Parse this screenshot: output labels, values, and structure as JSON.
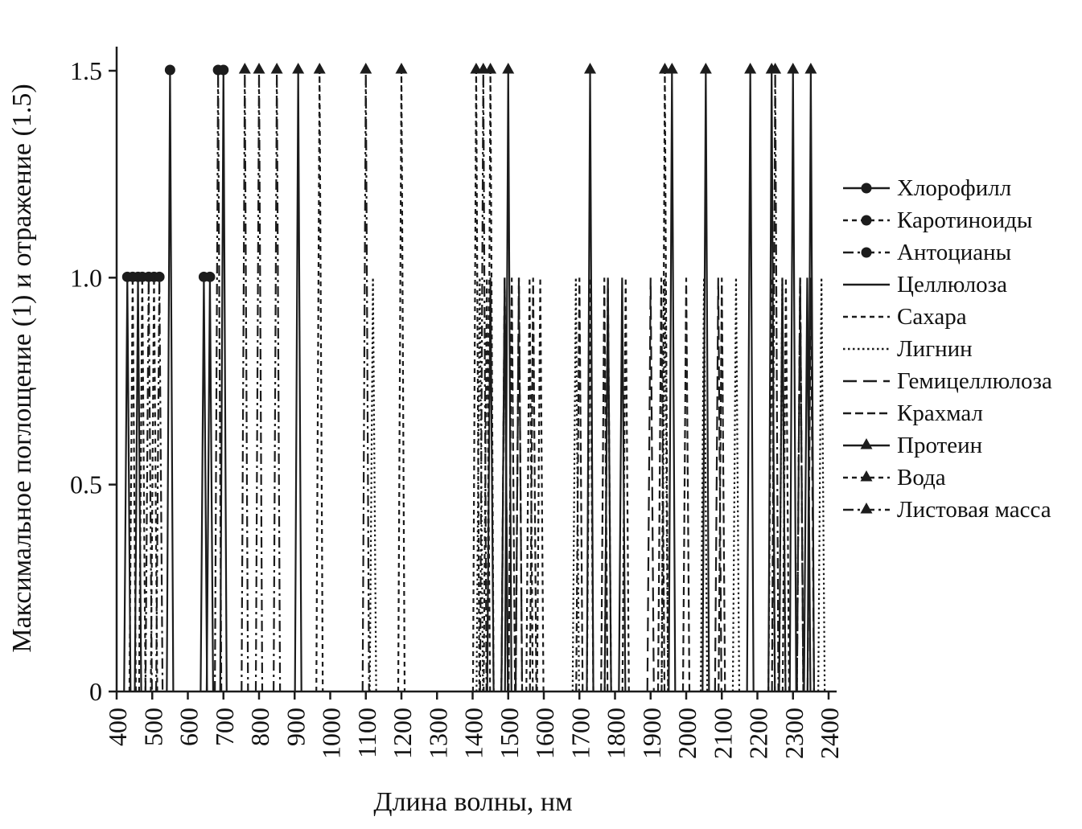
{
  "chart_data": {
    "type": "line",
    "subtype": "spectral-spike-stem",
    "title": "",
    "xlabel": "Длина волны, нм",
    "ylabel": "Максимальное поглощение (1) и отражение (1.5)",
    "xlim": [
      400,
      2400
    ],
    "ylim": [
      0,
      1.5
    ],
    "x_ticks": [
      400,
      500,
      600,
      700,
      800,
      900,
      1000,
      1100,
      1200,
      1300,
      1400,
      1500,
      1600,
      1700,
      1800,
      1900,
      2000,
      2100,
      2200,
      2300,
      2400
    ],
    "y_ticks": [
      0,
      0.5,
      1.0,
      1.5
    ],
    "y_tick_labels": [
      "0",
      "0.5",
      "1.0",
      "1.5"
    ],
    "absorption_level": 1.0,
    "reflection_level": 1.5,
    "grid": false,
    "legend_position": "right",
    "line_color": "#1c1c1c",
    "series": [
      {
        "name": "Хлорофилл",
        "line_style": "solid",
        "marker": "circle",
        "points": [
          [
            430,
            1.0
          ],
          [
            460,
            1.0
          ],
          [
            550,
            1.5
          ],
          [
            645,
            1.0
          ],
          [
            662,
            1.0
          ],
          [
            700,
            1.5
          ]
        ]
      },
      {
        "name": "Каротиноиды",
        "line_style": "shortdash",
        "marker": "circle",
        "points": [
          [
            445,
            1.0
          ],
          [
            472,
            1.0
          ],
          [
            505,
            1.0
          ]
        ]
      },
      {
        "name": "Антоцианы",
        "line_style": "dashdot",
        "marker": "circle",
        "points": [
          [
            490,
            1.0
          ],
          [
            520,
            1.0
          ],
          [
            685,
            1.5
          ]
        ]
      },
      {
        "name": "Целлюлоза",
        "line_style": "solid",
        "marker": "none",
        "points": [
          [
            1450,
            1.0
          ],
          [
            1490,
            1.0
          ],
          [
            1780,
            1.0
          ],
          [
            1820,
            1.0
          ],
          [
            2270,
            1.0
          ],
          [
            2340,
            1.0
          ]
        ]
      },
      {
        "name": "Сахара",
        "line_style": "shortdash",
        "marker": "none",
        "points": [
          [
            1440,
            1.0
          ],
          [
            1490,
            1.0
          ],
          [
            1560,
            1.0
          ],
          [
            1590,
            1.0
          ],
          [
            1730,
            1.0
          ],
          [
            1780,
            1.0
          ],
          [
            1830,
            1.0
          ],
          [
            2240,
            1.0
          ],
          [
            2280,
            1.0
          ],
          [
            2320,
            1.0
          ]
        ]
      },
      {
        "name": "Лигнин",
        "line_style": "dot",
        "marker": "none",
        "points": [
          [
            1120,
            1.0
          ],
          [
            1420,
            1.0
          ],
          [
            1690,
            1.0
          ],
          [
            1940,
            1.0
          ],
          [
            2050,
            1.0
          ],
          [
            2140,
            1.0
          ],
          [
            2270,
            1.0
          ],
          [
            2380,
            1.0
          ]
        ]
      },
      {
        "name": "Гемицеллюлоза",
        "line_style": "longdash",
        "marker": "none",
        "points": [
          [
            1490,
            1.0
          ],
          [
            1530,
            1.0
          ],
          [
            1900,
            1.0
          ],
          [
            2090,
            1.0
          ],
          [
            2320,
            1.0
          ],
          [
            2350,
            1.0
          ]
        ]
      },
      {
        "name": "Крахмал",
        "line_style": "mediumdash",
        "marker": "none",
        "points": [
          [
            1510,
            1.0
          ],
          [
            1530,
            1.0
          ],
          [
            1570,
            1.0
          ],
          [
            1700,
            1.0
          ],
          [
            1770,
            1.0
          ],
          [
            1930,
            1.0
          ],
          [
            2000,
            1.0
          ],
          [
            2100,
            1.0
          ],
          [
            2320,
            1.0
          ]
        ]
      },
      {
        "name": "Протеин",
        "line_style": "solid",
        "marker": "triangle",
        "points": [
          [
            910,
            1.5
          ],
          [
            1500,
            1.5
          ],
          [
            1730,
            1.5
          ],
          [
            1960,
            1.5
          ],
          [
            2055,
            1.5
          ],
          [
            2180,
            1.5
          ],
          [
            2240,
            1.5
          ],
          [
            2300,
            1.5
          ],
          [
            2350,
            1.5
          ]
        ]
      },
      {
        "name": "Вода",
        "line_style": "shortdash",
        "marker": "triangle",
        "points": [
          [
            970,
            1.5
          ],
          [
            1200,
            1.5
          ],
          [
            1410,
            1.5
          ],
          [
            1450,
            1.5
          ],
          [
            1940,
            1.5
          ]
        ]
      },
      {
        "name": "Листовая масса",
        "line_style": "dashdot",
        "marker": "triangle",
        "points": [
          [
            760,
            1.5
          ],
          [
            800,
            1.5
          ],
          [
            850,
            1.5
          ],
          [
            1100,
            1.5
          ],
          [
            1430,
            1.5
          ],
          [
            2250,
            1.5
          ]
        ]
      }
    ]
  }
}
